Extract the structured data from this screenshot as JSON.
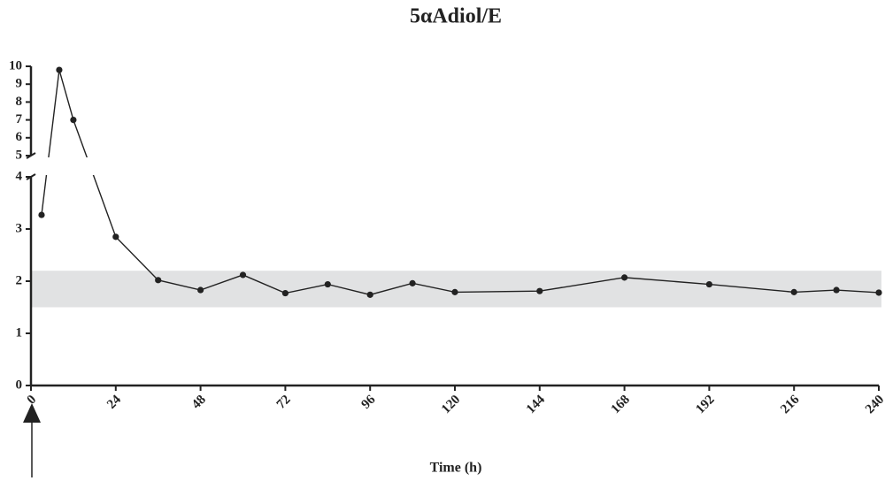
{
  "chart_data": {
    "type": "line",
    "title": "5αAdiol/E",
    "x_label": "Time (h)",
    "x": [
      3,
      8,
      12,
      24,
      36,
      48,
      60,
      72,
      84,
      96,
      108,
      120,
      144,
      168,
      192,
      216,
      228,
      240
    ],
    "values": [
      3.27,
      9.8,
      7.0,
      2.85,
      2.02,
      1.83,
      2.12,
      1.77,
      1.94,
      1.74,
      1.96,
      1.79,
      1.81,
      2.07,
      1.94,
      1.79,
      1.83,
      1.78
    ],
    "color": "#222222",
    "xlim": [
      0,
      240
    ],
    "xticks": [
      0,
      24,
      48,
      72,
      96,
      120,
      144,
      168,
      192,
      216,
      240
    ],
    "ylim": [
      0,
      10
    ],
    "ybreak": [
      4,
      5
    ],
    "yticks": [
      0,
      1,
      2,
      3,
      4,
      5,
      6,
      7,
      8,
      9,
      10
    ],
    "band": [
      1.5,
      2.2
    ],
    "band_color": "#e1e2e3"
  }
}
